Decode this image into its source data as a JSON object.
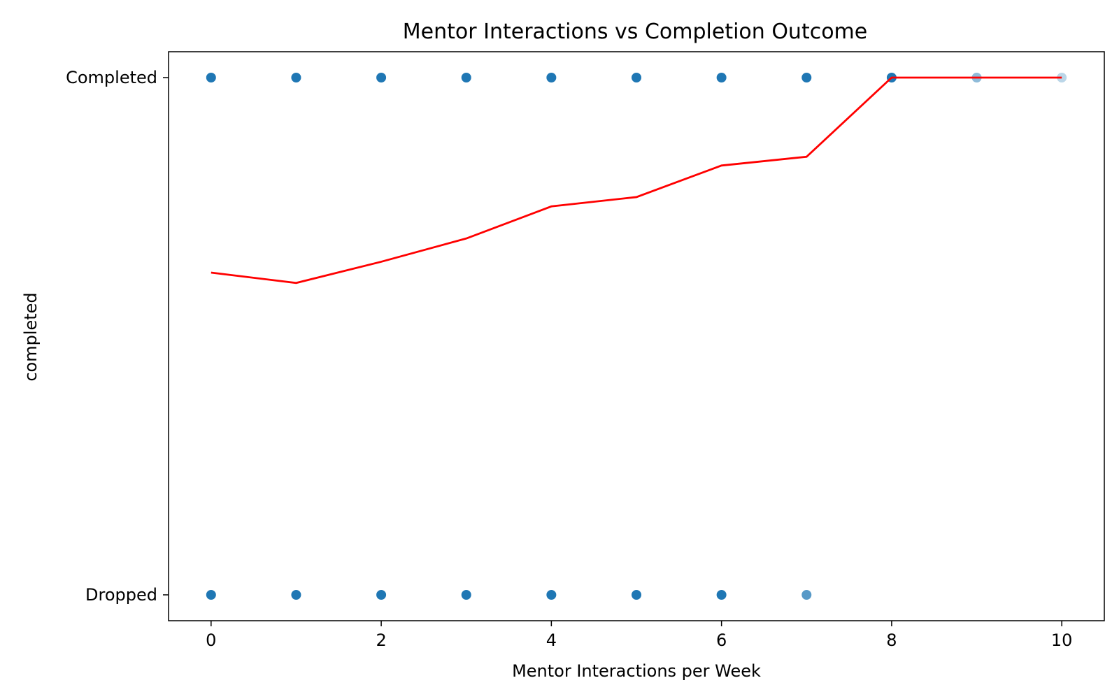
{
  "chart_data": {
    "type": "scatter",
    "title": "Mentor Interactions vs Completion Outcome",
    "xlabel": "Mentor Interactions per Week",
    "ylabel": "completed",
    "xlim": [
      -0.5,
      10.5
    ],
    "ylim": [
      -0.05,
      1.05
    ],
    "x_ticks": [
      0,
      2,
      4,
      6,
      8,
      10
    ],
    "y_ticks": [
      {
        "value": 0,
        "label": "Dropped"
      },
      {
        "value": 1,
        "label": "Completed"
      }
    ],
    "grid": false,
    "legend": "none",
    "point_color": "#1f77b4",
    "line_color": "#ff0000",
    "points": [
      {
        "x": 0,
        "y": 1,
        "opacity": 1.0
      },
      {
        "x": 1,
        "y": 1,
        "opacity": 1.0
      },
      {
        "x": 2,
        "y": 1,
        "opacity": 1.0
      },
      {
        "x": 3,
        "y": 1,
        "opacity": 1.0
      },
      {
        "x": 4,
        "y": 1,
        "opacity": 1.0
      },
      {
        "x": 5,
        "y": 1,
        "opacity": 1.0
      },
      {
        "x": 6,
        "y": 1,
        "opacity": 1.0
      },
      {
        "x": 7,
        "y": 1,
        "opacity": 1.0
      },
      {
        "x": 8,
        "y": 1,
        "opacity": 1.0
      },
      {
        "x": 9,
        "y": 1,
        "opacity": 0.5
      },
      {
        "x": 10,
        "y": 1,
        "opacity": 0.3
      },
      {
        "x": 0,
        "y": 0,
        "opacity": 1.0
      },
      {
        "x": 1,
        "y": 0,
        "opacity": 1.0
      },
      {
        "x": 2,
        "y": 0,
        "opacity": 1.0
      },
      {
        "x": 3,
        "y": 0,
        "opacity": 1.0
      },
      {
        "x": 4,
        "y": 0,
        "opacity": 1.0
      },
      {
        "x": 5,
        "y": 0,
        "opacity": 1.0
      },
      {
        "x": 6,
        "y": 0,
        "opacity": 1.0
      },
      {
        "x": 7,
        "y": 0,
        "opacity": 0.75
      }
    ],
    "line": {
      "x": [
        0,
        1,
        2,
        3,
        4,
        5,
        6,
        7,
        8,
        9,
        10
      ],
      "y": [
        0.623,
        0.603,
        0.644,
        0.689,
        0.751,
        0.769,
        0.83,
        0.847,
        1.0,
        1.0,
        1.0
      ]
    }
  }
}
